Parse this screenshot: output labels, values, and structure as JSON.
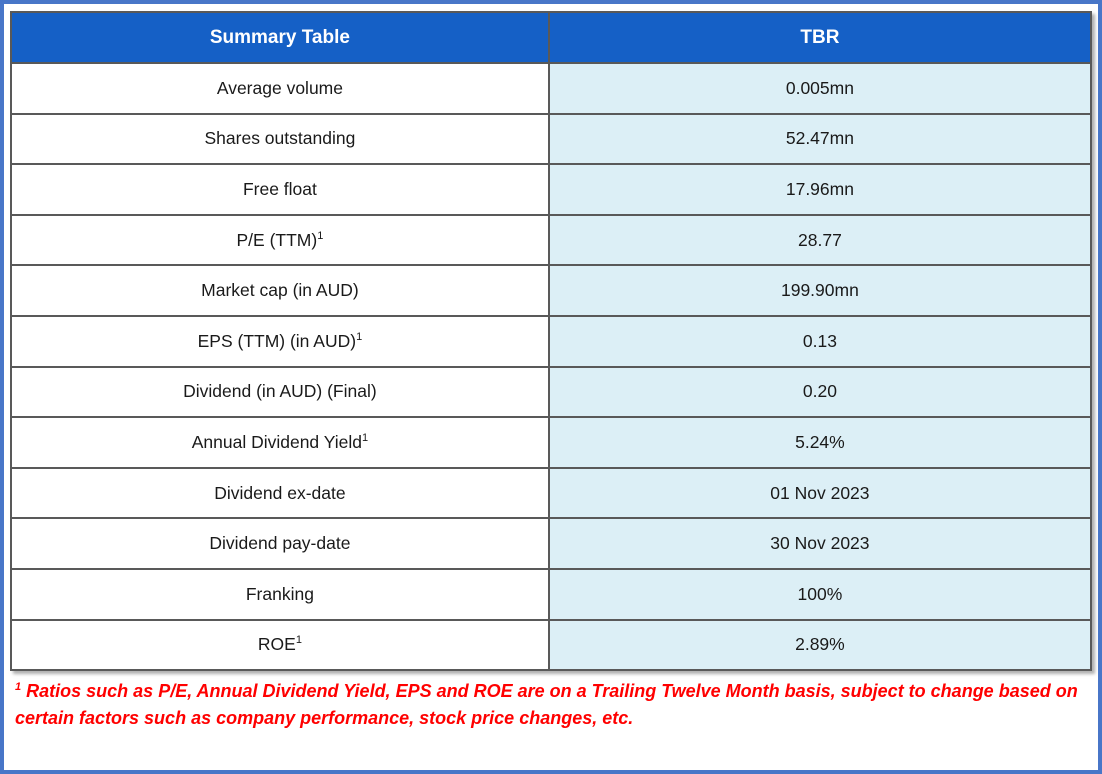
{
  "colors": {
    "frame_border": "#4876C8",
    "header_bg": "#1560C6",
    "header_text": "#FFFFFF",
    "value_cell_bg": "#DCEFF6",
    "label_cell_bg": "#FFFFFF",
    "grid_border": "#595959",
    "body_text": "#1A1A1A",
    "footnote_text": "#FF0000"
  },
  "table": {
    "columns": [
      "Summary Table",
      "TBR"
    ],
    "rows": [
      {
        "label": "Average volume",
        "sup": "",
        "value": "0.005mn"
      },
      {
        "label": "Shares outstanding",
        "sup": "",
        "value": "52.47mn"
      },
      {
        "label": "Free float",
        "sup": "",
        "value": "17.96mn"
      },
      {
        "label": "P/E (TTM)",
        "sup": "1",
        "value": "28.77"
      },
      {
        "label": "Market cap (in AUD)",
        "sup": "",
        "value": "199.90mn"
      },
      {
        "label": "EPS (TTM) (in AUD)",
        "sup": "1",
        "value": "0.13"
      },
      {
        "label": "Dividend (in AUD) (Final)",
        "sup": "",
        "value": "0.20"
      },
      {
        "label": "Annual Dividend Yield",
        "sup": "1",
        "value": "5.24%"
      },
      {
        "label": "Dividend ex-date",
        "sup": "",
        "value": "01 Nov 2023"
      },
      {
        "label": "Dividend pay-date",
        "sup": "",
        "value": "30 Nov 2023"
      },
      {
        "label": "Franking",
        "sup": "",
        "value": "100%"
      },
      {
        "label": "ROE",
        "sup": "1",
        "value": "2.89%"
      }
    ]
  },
  "footnote": {
    "sup": "1",
    "text": "Ratios such as P/E, Annual Dividend Yield, EPS and ROE are on a Trailing Twelve Month basis, subject to change based on certain factors such as company performance, stock price changes, etc."
  },
  "chart_data": {
    "type": "table",
    "title": "Summary Table",
    "columns": [
      "Summary Table",
      "TBR"
    ],
    "rows": [
      [
        "Average volume",
        "0.005mn"
      ],
      [
        "Shares outstanding",
        "52.47mn"
      ],
      [
        "Free float",
        "17.96mn"
      ],
      [
        "P/E (TTM)1",
        "28.77"
      ],
      [
        "Market cap (in AUD)",
        "199.90mn"
      ],
      [
        "EPS (TTM) (in AUD)1",
        "0.13"
      ],
      [
        "Dividend (in AUD) (Final)",
        "0.20"
      ],
      [
        "Annual Dividend Yield1",
        "5.24%"
      ],
      [
        "Dividend ex-date",
        "01 Nov 2023"
      ],
      [
        "Dividend pay-date",
        "30 Nov 2023"
      ],
      [
        "Franking",
        "100%"
      ],
      [
        "ROE1",
        "2.89%"
      ]
    ]
  }
}
